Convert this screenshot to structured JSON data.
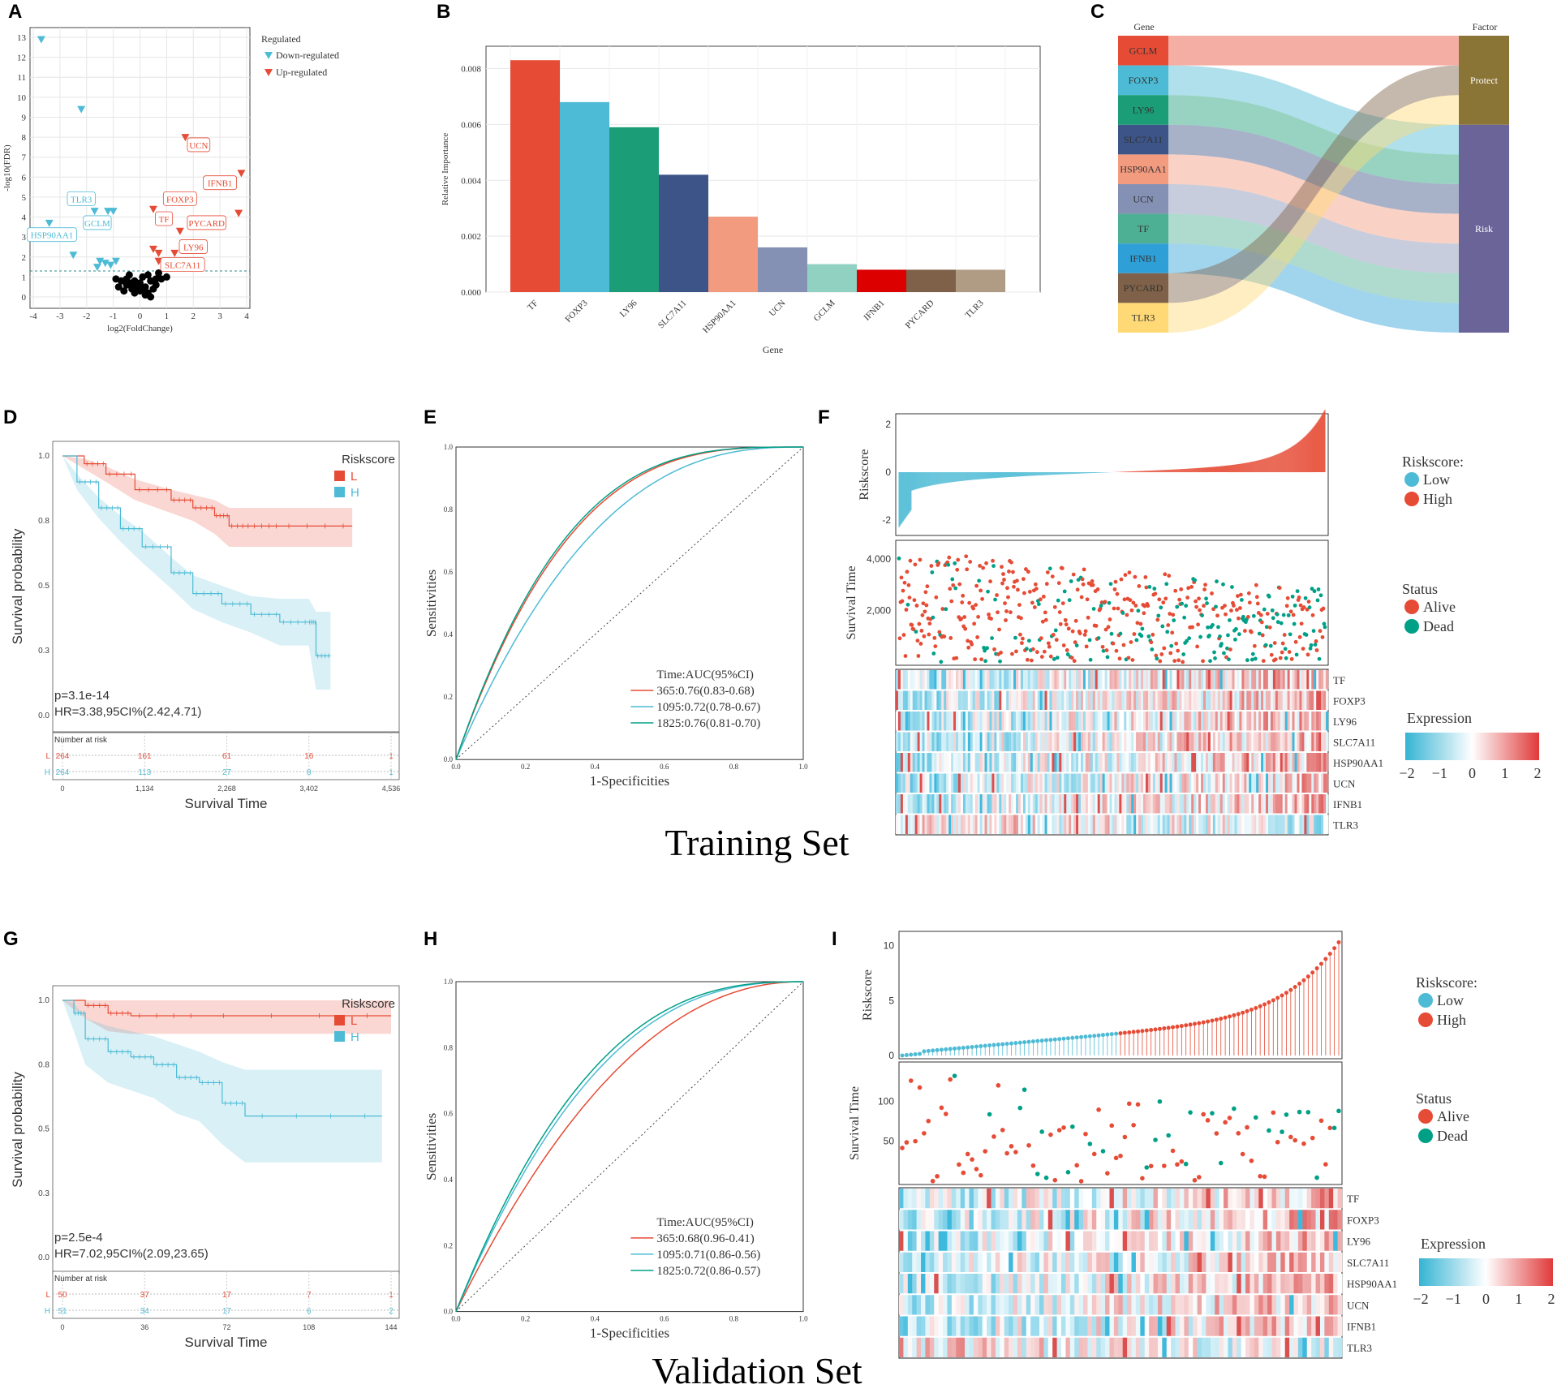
{
  "panel_labels": [
    "A",
    "B",
    "C",
    "D",
    "E",
    "F",
    "G",
    "H",
    "I"
  ],
  "set_labels": {
    "training": "Training Set",
    "validation": "Validation Set"
  },
  "chart_data": [
    {
      "id": "A",
      "type": "scatter",
      "xlabel": "log2(FoldChange)",
      "ylabel": "-log10(FDR)",
      "xlim": [
        -4,
        4
      ],
      "ylim": [
        0,
        13
      ],
      "xticks": [
        "-4",
        "-3",
        "-2",
        "-1",
        "0",
        "1",
        "2",
        "3",
        "4"
      ],
      "yticks": [
        "0",
        "1",
        "2",
        "3",
        "4",
        "5",
        "6",
        "7",
        "8",
        "9",
        "10",
        "11",
        "12",
        "13"
      ],
      "threshold_y": 1.3,
      "legend_title": "Regulated",
      "legend": [
        "Down-regulated",
        "Up-regulated"
      ],
      "down_points": [
        [
          -3.7,
          12.9
        ],
        [
          -2.2,
          9.4
        ],
        [
          -1.7,
          4.3
        ],
        [
          -1.2,
          4.3
        ],
        [
          -1.0,
          4.3
        ],
        [
          -3.4,
          3.7
        ],
        [
          -2.5,
          2.1
        ],
        [
          -1.5,
          1.8
        ],
        [
          -1.3,
          1.7
        ],
        [
          -1.1,
          1.6
        ],
        [
          -0.9,
          1.8
        ],
        [
          -1.6,
          1.5
        ]
      ],
      "up_points": [
        [
          1.7,
          8.0
        ],
        [
          3.8,
          6.2
        ],
        [
          0.5,
          4.4
        ],
        [
          3.7,
          4.2
        ],
        [
          1.5,
          3.3
        ],
        [
          0.5,
          2.4
        ],
        [
          0.7,
          2.2
        ],
        [
          1.3,
          2.2
        ],
        [
          0.7,
          1.8
        ]
      ],
      "ns_points": [
        [
          -0.9,
          0.9
        ],
        [
          -0.7,
          0.8
        ],
        [
          -0.5,
          0.6
        ],
        [
          -0.3,
          0.4
        ],
        [
          0.0,
          0.3
        ],
        [
          0.2,
          0.5
        ],
        [
          0.4,
          0.8
        ],
        [
          0.6,
          0.6
        ],
        [
          0.8,
          0.9
        ],
        [
          -0.2,
          0.8
        ],
        [
          0.1,
          1.0
        ],
        [
          0.3,
          0.2
        ],
        [
          -0.6,
          0.3
        ],
        [
          -0.4,
          1.1
        ],
        [
          0.5,
          0.4
        ],
        [
          0.7,
          1.2
        ],
        [
          -0.1,
          0.5
        ],
        [
          0.2,
          0.1
        ],
        [
          -0.8,
          0.5
        ],
        [
          0.0,
          0.7
        ],
        [
          1.0,
          1.0
        ],
        [
          0.4,
          0.0
        ],
        [
          -0.2,
          0.2
        ],
        [
          0.6,
          0.9
        ],
        [
          -0.5,
          0.9
        ],
        [
          0.3,
          1.1
        ],
        [
          -0.3,
          0.7
        ],
        [
          0.1,
          0.4
        ]
      ],
      "labels": [
        {
          "text": "TLR3",
          "x": -2.2,
          "y": 4.9,
          "class": "down"
        },
        {
          "text": "GCLM",
          "x": -1.6,
          "y": 3.7,
          "class": "down"
        },
        {
          "text": "HSP90AA1",
          "x": -3.3,
          "y": 3.1,
          "class": "down"
        },
        {
          "text": "UCN",
          "x": 2.2,
          "y": 7.6,
          "class": "up"
        },
        {
          "text": "IFNB1",
          "x": 3.0,
          "y": 5.7,
          "class": "up"
        },
        {
          "text": "FOXP3",
          "x": 1.5,
          "y": 4.9,
          "class": "up"
        },
        {
          "text": "TF",
          "x": 0.9,
          "y": 3.9,
          "class": "up"
        },
        {
          "text": "PYCARD",
          "x": 2.5,
          "y": 3.7,
          "class": "up"
        },
        {
          "text": "LY96",
          "x": 2.0,
          "y": 2.5,
          "class": "up"
        },
        {
          "text": "SLC7A11",
          "x": 1.6,
          "y": 1.6,
          "class": "up"
        }
      ]
    },
    {
      "id": "B",
      "type": "bar",
      "xlabel": "Gene",
      "ylabel": "Relative Importance",
      "ylim": [
        0,
        0.0088
      ],
      "yticks": [
        "0.000",
        "0.002",
        "0.004",
        "0.006",
        "0.008"
      ],
      "categories": [
        "TF",
        "FOXP3",
        "LY96",
        "SLC7A11",
        "HSP90AA1",
        "UCN",
        "GCLM",
        "IFNB1",
        "PYCARD",
        "TLR3"
      ],
      "values": [
        0.0083,
        0.0068,
        0.0059,
        0.0042,
        0.0027,
        0.0016,
        0.001,
        0.0008,
        0.0008,
        0.0008
      ],
      "colors": [
        "#e64b35",
        "#4dbbd5",
        "#1b9e77",
        "#3c5488",
        "#f39b7f",
        "#8491b4",
        "#91d1c2",
        "#dc0000",
        "#7e6148",
        "#b09c85"
      ]
    },
    {
      "id": "C",
      "type": "sankey",
      "left_title": "Gene",
      "right_title": "Factor",
      "genes": [
        {
          "name": "GCLM",
          "color": "#e64b35",
          "factor": "Protect"
        },
        {
          "name": "FOXP3",
          "color": "#4dbbd5",
          "factor": "Risk"
        },
        {
          "name": "LY96",
          "color": "#1b9e77",
          "factor": "Risk"
        },
        {
          "name": "SLC7A11",
          "color": "#3c5488",
          "factor": "Risk"
        },
        {
          "name": "HSP90AA1",
          "color": "#f39b7f",
          "factor": "Risk"
        },
        {
          "name": "UCN",
          "color": "#8491b4",
          "factor": "Risk"
        },
        {
          "name": "TF",
          "color": "#4daf93",
          "factor": "Risk"
        },
        {
          "name": "IFNB1",
          "color": "#2f9fd8",
          "factor": "Risk"
        },
        {
          "name": "PYCARD",
          "color": "#7e6148",
          "factor": "Protect"
        },
        {
          "name": "TLR3",
          "color": "#fed976",
          "factor": "Protect"
        }
      ],
      "factors": [
        {
          "name": "Protect",
          "color": "#8b7536"
        },
        {
          "name": "Risk",
          "color": "#6a6499"
        }
      ]
    },
    {
      "id": "D",
      "type": "line",
      "subtype": "kaplan-meier",
      "xlabel": "Survival Time",
      "ylabel": "Survival probability",
      "xlim": [
        0,
        4536
      ],
      "ylim": [
        0,
        1
      ],
      "xticks": [
        "0",
        "1,134",
        "2,268",
        "3,402",
        "4,536"
      ],
      "yticks": [
        "0.0",
        "0.3",
        "0.5",
        "0.8",
        "1.0"
      ],
      "legend_title": "Riskscore",
      "series": [
        {
          "name": "L",
          "color": "#e64b35",
          "x": [
            0,
            300,
            600,
            1000,
            1500,
            1800,
            2100,
            2300,
            2600,
            3000,
            4000
          ],
          "values": [
            1.0,
            0.97,
            0.93,
            0.87,
            0.83,
            0.8,
            0.77,
            0.73,
            0.73,
            0.73,
            0.73
          ],
          "upper": [
            1.0,
            0.99,
            0.96,
            0.91,
            0.87,
            0.85,
            0.83,
            0.8,
            0.8,
            0.8,
            0.8
          ],
          "lower": [
            1.0,
            0.95,
            0.9,
            0.83,
            0.78,
            0.75,
            0.7,
            0.65,
            0.65,
            0.65,
            0.65
          ]
        },
        {
          "name": "H",
          "color": "#4dbbd5",
          "x": [
            0,
            200,
            500,
            800,
            1100,
            1500,
            1800,
            2200,
            2600,
            3000,
            3400,
            3500,
            3700
          ],
          "values": [
            1.0,
            0.9,
            0.8,
            0.72,
            0.65,
            0.55,
            0.47,
            0.43,
            0.39,
            0.36,
            0.36,
            0.23,
            0.23
          ],
          "upper": [
            1.0,
            0.93,
            0.84,
            0.77,
            0.71,
            0.61,
            0.54,
            0.5,
            0.46,
            0.45,
            0.45,
            0.4,
            0.4
          ],
          "lower": [
            1.0,
            0.87,
            0.76,
            0.67,
            0.59,
            0.49,
            0.41,
            0.36,
            0.32,
            0.27,
            0.27,
            0.1,
            0.1
          ]
        }
      ],
      "annotations": [
        "p=3.1e-14",
        "HR=3.38,95CI%(2.42,4.71)"
      ],
      "risk_table": {
        "title": "Number at risk",
        "rows": [
          {
            "name": "L",
            "counts": [
              "264",
              "161",
              "61",
              "16",
              "1"
            ]
          },
          {
            "name": "H",
            "counts": [
              "264",
              "113",
              "27",
              "8",
              "1"
            ]
          }
        ]
      }
    },
    {
      "id": "E",
      "type": "line",
      "subtype": "roc",
      "xlabel": "1-Specificities",
      "ylabel": "Sensitivities",
      "xlim": [
        0,
        1
      ],
      "ylim": [
        0,
        1
      ],
      "xticks": [
        "0.0",
        "0.2",
        "0.4",
        "0.6",
        "0.8",
        "1.0"
      ],
      "yticks": [
        "0.0",
        "0.2",
        "0.4",
        "0.6",
        "0.8",
        "1.0"
      ],
      "legend_title": "Time:AUC(95%CI)",
      "series": [
        {
          "name": "365:0.76(0.83-0.68)",
          "color": "#e64b35",
          "auc": 0.76
        },
        {
          "name": "1095:0.72(0.78-0.67)",
          "color": "#4dbbd5",
          "auc": 0.72
        },
        {
          "name": "1825:0.76(0.81-0.70)",
          "color": "#00a087",
          "auc": 0.765
        }
      ]
    },
    {
      "id": "F",
      "type": "scatter",
      "subtype": "risk-plot",
      "risk_ylabel": "Riskscore",
      "risk_yticks": [
        "-2",
        "0",
        "2"
      ],
      "risk_ylim": [
        -2.5,
        2.3
      ],
      "surv_ylabel": "Survival Time",
      "surv_yticks": [
        "2,000",
        "4,000"
      ],
      "surv_ylim": [
        0,
        4600
      ],
      "n": 528,
      "legend_risk": {
        "title": "Riskscore:",
        "items": [
          "Low",
          "High"
        ]
      },
      "legend_status": {
        "title": "Status",
        "items": [
          "Alive",
          "Dead"
        ]
      },
      "heatmap_genes": [
        "TF",
        "FOXP3",
        "LY96",
        "SLC7A11",
        "HSP90AA1",
        "UCN",
        "IFNB1",
        "TLR3"
      ],
      "heatmap_legend": {
        "title": "Expression",
        "ticks": [
          "−2",
          "−1",
          "0",
          "1",
          "2"
        ]
      }
    },
    {
      "id": "G",
      "type": "line",
      "subtype": "kaplan-meier",
      "xlabel": "Survival Time",
      "ylabel": "Survival probability",
      "xlim": [
        0,
        144
      ],
      "ylim": [
        0,
        1
      ],
      "xticks": [
        "0",
        "36",
        "72",
        "108",
        "144"
      ],
      "yticks": [
        "0.0",
        "0.3",
        "0.5",
        "0.8",
        "1.0"
      ],
      "legend_title": "Riskscore",
      "series": [
        {
          "name": "L",
          "color": "#e64b35",
          "x": [
            0,
            10,
            20,
            30,
            60,
            144
          ],
          "values": [
            1.0,
            0.98,
            0.95,
            0.94,
            0.94,
            0.94
          ],
          "upper": [
            1.0,
            1.0,
            1.0,
            1.0,
            1.0,
            1.0
          ],
          "lower": [
            1.0,
            0.93,
            0.88,
            0.87,
            0.87,
            0.87
          ]
        },
        {
          "name": "H",
          "color": "#4dbbd5",
          "x": [
            0,
            5,
            10,
            20,
            30,
            40,
            50,
            60,
            70,
            80,
            140
          ],
          "values": [
            1.0,
            0.95,
            0.85,
            0.8,
            0.78,
            0.75,
            0.7,
            0.68,
            0.6,
            0.55,
            0.55
          ],
          "upper": [
            1.0,
            0.99,
            0.93,
            0.9,
            0.88,
            0.86,
            0.83,
            0.8,
            0.76,
            0.73,
            0.73
          ],
          "lower": [
            1.0,
            0.88,
            0.75,
            0.68,
            0.65,
            0.62,
            0.56,
            0.53,
            0.44,
            0.37,
            0.37
          ]
        }
      ],
      "annotations": [
        "p=2.5e-4",
        "HR=7.02,95CI%(2.09,23.65)"
      ],
      "risk_table": {
        "title": "Number at risk",
        "rows": [
          {
            "name": "L",
            "counts": [
              "50",
              "37",
              "17",
              "7",
              "1"
            ]
          },
          {
            "name": "H",
            "counts": [
              "51",
              "34",
              "17",
              "6",
              "2"
            ]
          }
        ]
      }
    },
    {
      "id": "H",
      "type": "line",
      "subtype": "roc",
      "xlabel": "1-Specificities",
      "ylabel": "Sensitivities",
      "xlim": [
        0,
        1
      ],
      "ylim": [
        0,
        1
      ],
      "xticks": [
        "0.0",
        "0.2",
        "0.4",
        "0.6",
        "0.8",
        "1.0"
      ],
      "yticks": [
        "0.0",
        "0.2",
        "0.4",
        "0.6",
        "0.8",
        "1.0"
      ],
      "legend_title": "Time:AUC(95%CI)",
      "series": [
        {
          "name": "365:0.68(0.96-0.41)",
          "color": "#e64b35",
          "auc": 0.68
        },
        {
          "name": "1095:0.71(0.86-0.56)",
          "color": "#4dbbd5",
          "auc": 0.715
        },
        {
          "name": "1825:0.72(0.86-0.57)",
          "color": "#00a087",
          "auc": 0.725
        }
      ]
    },
    {
      "id": "I",
      "type": "scatter",
      "subtype": "risk-plot",
      "risk_ylabel": "Riskscore",
      "risk_yticks": [
        "0",
        "5",
        "10"
      ],
      "risk_ylim": [
        0,
        11
      ],
      "surv_ylabel": "Survival Time",
      "surv_yticks": [
        "50",
        "100"
      ],
      "surv_ylim": [
        0,
        145
      ],
      "n": 101,
      "legend_risk": {
        "title": "Riskscore:",
        "items": [
          "Low",
          "High"
        ]
      },
      "legend_status": {
        "title": "Status",
        "items": [
          "Alive",
          "Dead"
        ]
      },
      "heatmap_genes": [
        "TF",
        "FOXP3",
        "LY96",
        "SLC7A11",
        "HSP90AA1",
        "UCN",
        "IFNB1",
        "TLR3"
      ],
      "heatmap_legend": {
        "title": "Expression",
        "ticks": [
          "−2",
          "−1",
          "0",
          "1",
          "2"
        ]
      }
    }
  ]
}
